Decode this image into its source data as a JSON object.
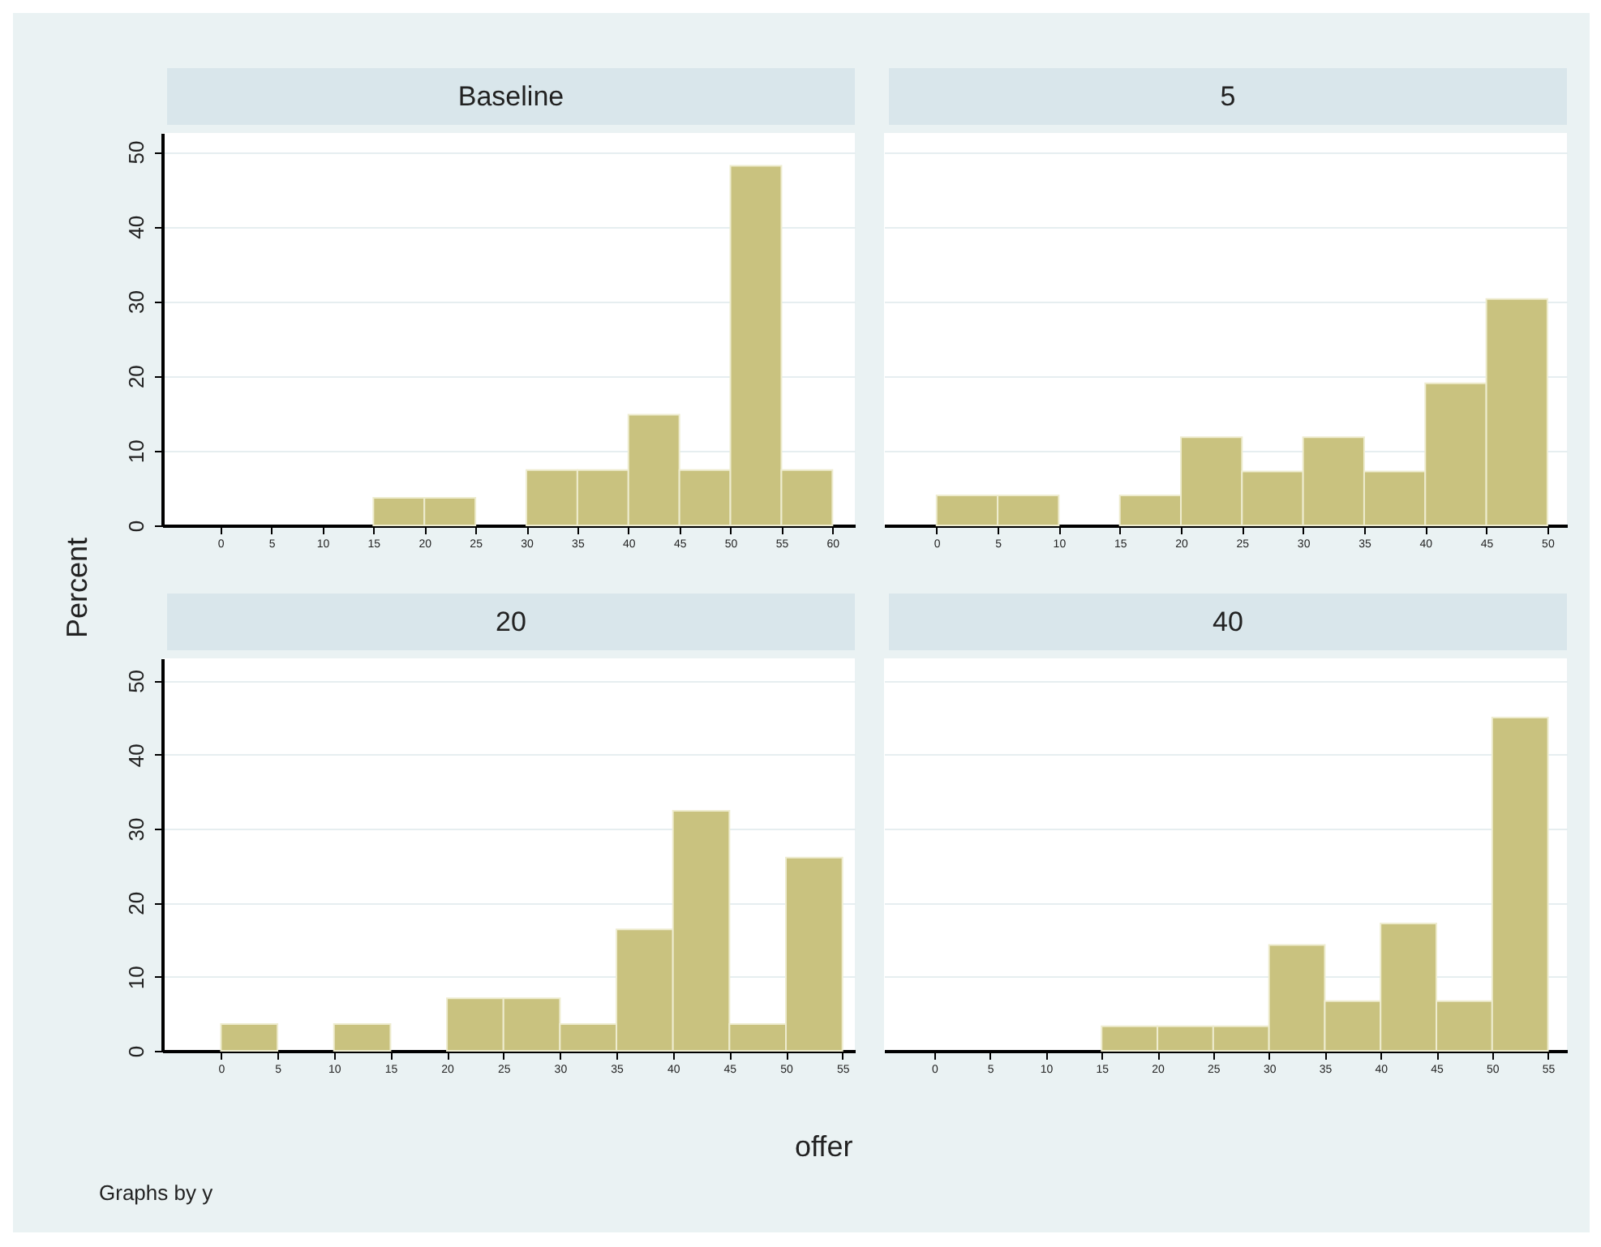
{
  "chart_data": [
    {
      "type": "histogram",
      "title": "Baseline",
      "ylabel": "Percent",
      "color": "#c9c27f",
      "bins": [
        15,
        20,
        25,
        30,
        35,
        40,
        45,
        50,
        55,
        60
      ],
      "values": [
        3.7,
        3.7,
        0,
        7.4,
        7.4,
        14.8,
        7.4,
        48.1,
        7.4
      ],
      "xlim": [
        -5.7,
        62.2
      ],
      "xticks": [
        0,
        5,
        10,
        15,
        20,
        25,
        30,
        35,
        40,
        45,
        50,
        55,
        60
      ],
      "ylim": [
        0,
        52.5
      ],
      "yticks": [
        0,
        10,
        20,
        30,
        40,
        50
      ],
      "grid": "y"
    },
    {
      "type": "histogram",
      "title": "5",
      "color": "#c9c27f",
      "bins": [
        0,
        5,
        10,
        15,
        20,
        25,
        30,
        35,
        40,
        45,
        50
      ],
      "values": [
        4,
        4,
        0,
        4,
        11.8,
        7.2,
        11.8,
        7.2,
        19,
        30.3
      ],
      "xlim": [
        -4.3,
        51.6
      ],
      "xticks": [
        0,
        5,
        10,
        15,
        20,
        25,
        30,
        35,
        40,
        45,
        50
      ],
      "ylim": [
        0,
        52.5
      ],
      "yticks": [
        0,
        10,
        20,
        30,
        40,
        50
      ],
      "grid": "y",
      "tick_labels": "x"
    },
    {
      "type": "histogram",
      "title": "20",
      "annotations": [
        "Graphs by y"
      ],
      "color": "#c9c27f",
      "bins": [
        0,
        5,
        10,
        15,
        20,
        25,
        30,
        35,
        40,
        45,
        50,
        55
      ],
      "values": [
        3.6,
        0,
        3.6,
        0,
        7.1,
        7.1,
        3.6,
        16.4,
        32.4,
        3.6,
        26.1
      ],
      "xlim": [
        -5.2,
        56.1
      ],
      "xticks": [
        0,
        5,
        10,
        15,
        20,
        25,
        30,
        35,
        40,
        45,
        50,
        55
      ],
      "ylim": [
        0,
        53
      ],
      "yticks": [
        0,
        10,
        20,
        30,
        40,
        50
      ],
      "grid": "y"
    },
    {
      "type": "histogram",
      "title": "40",
      "xlabel": "offer",
      "color": "#c9c27f",
      "bins": [
        15,
        20,
        25,
        30,
        35,
        40,
        45,
        50,
        55
      ],
      "values": [
        3.3,
        3.3,
        3.3,
        14.3,
        6.7,
        17.2,
        6.7,
        45
      ],
      "xlim": [
        -4.5,
        56.7
      ],
      "xticks": [
        0,
        5,
        10,
        15,
        20,
        25,
        30,
        35,
        40,
        45,
        50,
        55
      ],
      "ylim": [
        0,
        53
      ],
      "yticks": [
        0,
        10,
        20,
        30,
        40,
        50
      ],
      "grid": "y",
      "tick_labels": "x"
    }
  ]
}
